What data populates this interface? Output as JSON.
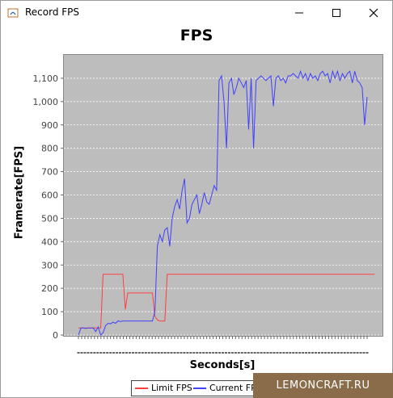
{
  "window": {
    "title": "Record FPS",
    "controls": [
      "minimize-icon",
      "maximize-icon",
      "close-icon"
    ]
  },
  "chart_data": {
    "type": "line",
    "title": "FPS",
    "xlabel": "Seconds[s]",
    "ylabel": "Framerate[FPS]",
    "ylim": [
      0,
      1200
    ],
    "yticks": [
      0,
      100,
      200,
      300,
      400,
      500,
      600,
      700,
      800,
      900,
      1000,
      1100
    ],
    "ytick_labels": [
      "0",
      "100",
      "200",
      "300",
      "400",
      "500",
      "600",
      "700",
      "800",
      "900",
      "1,000",
      "1,100"
    ],
    "grid": true,
    "legend_position": "bottom",
    "series": [
      {
        "name": "Limit FPS",
        "color": "#ff4040",
        "x": [
          0,
          9,
          10,
          18,
          19,
          20,
          30,
          31,
          32,
          33,
          34,
          35,
          36,
          120
        ],
        "y": [
          30,
          30,
          260,
          260,
          110,
          180,
          180,
          80,
          65,
          60,
          60,
          60,
          260,
          260
        ]
      },
      {
        "name": "Current FPS",
        "color": "#4040ff",
        "x": [
          0,
          1,
          2,
          3,
          4,
          5,
          6,
          7,
          8,
          9,
          10,
          11,
          12,
          13,
          14,
          15,
          16,
          17,
          18,
          19,
          20,
          21,
          22,
          23,
          24,
          25,
          26,
          27,
          28,
          29,
          30,
          31,
          32,
          33,
          34,
          35,
          36,
          37,
          38,
          39,
          40,
          41,
          42,
          43,
          44,
          45,
          46,
          47,
          48,
          49,
          50,
          51,
          52,
          53,
          54,
          55,
          56,
          57,
          58,
          59,
          60,
          61,
          62,
          63,
          64,
          65,
          66,
          67,
          68,
          69,
          70,
          71,
          72,
          73,
          74,
          75,
          76,
          77,
          78,
          79,
          80,
          81,
          82,
          83,
          84,
          85,
          86,
          87,
          88,
          89,
          90,
          91,
          92,
          93,
          94,
          95,
          96,
          97,
          98,
          99,
          100,
          101,
          102,
          103,
          104,
          105,
          106,
          107,
          108,
          109,
          110,
          111,
          112,
          113,
          114,
          115,
          116,
          117
        ],
        "y": [
          0,
          30,
          30,
          28,
          30,
          30,
          30,
          15,
          35,
          0,
          10,
          40,
          50,
          48,
          55,
          50,
          60,
          58,
          60,
          60,
          60,
          60,
          60,
          60,
          60,
          60,
          60,
          60,
          60,
          60,
          60,
          100,
          380,
          430,
          400,
          450,
          460,
          380,
          500,
          550,
          580,
          540,
          620,
          670,
          480,
          500,
          560,
          580,
          600,
          520,
          560,
          610,
          570,
          560,
          600,
          640,
          620,
          1090,
          1110,
          1000,
          800,
          1080,
          1100,
          1030,
          1060,
          1100,
          1080,
          1060,
          1090,
          880,
          1100,
          800,
          1090,
          1100,
          1110,
          1100,
          1090,
          1100,
          1110,
          980,
          1100,
          1110,
          1090,
          1100,
          1080,
          1110,
          1110,
          1120,
          1110,
          1100,
          1130,
          1100,
          1120,
          1090,
          1120,
          1100,
          1110,
          1090,
          1120,
          1130,
          1110,
          1120,
          1080,
          1130,
          1100,
          1130,
          1090,
          1120,
          1100,
          1120,
          1130,
          1080,
          1130,
          1090,
          1080,
          1060,
          900,
          1020
        ]
      }
    ],
    "xlim": [
      0,
      117
    ]
  },
  "legend": {
    "limit_label": "Limit FPS",
    "current_label": "Current FPS"
  },
  "watermark": "LEMONCRAFT.RU"
}
